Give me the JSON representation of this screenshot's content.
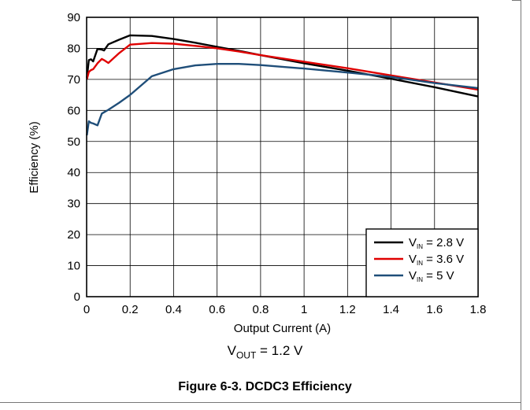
{
  "chart_data": {
    "type": "line",
    "ylabel": "Efficiency (%)",
    "xlabel": "Output Current (A)",
    "xlim": [
      0,
      1.8
    ],
    "ylim": [
      0,
      90
    ],
    "x_ticks": [
      "0",
      "0.2",
      "0.4",
      "0.6",
      "0.8",
      "1",
      "1.2",
      "1.4",
      "1.6",
      "1.8"
    ],
    "y_ticks": [
      "0",
      "10",
      "20",
      "30",
      "40",
      "50",
      "60",
      "70",
      "80",
      "90"
    ],
    "grid": true,
    "legend_position": "bottom-right",
    "series": [
      {
        "name": "2.8 V",
        "color": "#000000",
        "x": [
          0.001,
          0.01,
          0.02,
          0.03,
          0.05,
          0.07,
          0.08,
          0.1,
          0.15,
          0.2,
          0.3,
          0.4,
          0.5,
          0.6,
          0.7,
          0.8,
          1.0,
          1.2,
          1.4,
          1.6,
          1.8
        ],
        "y": [
          70.5,
          76.2,
          76.5,
          75.8,
          79.8,
          79.6,
          79.3,
          81.3,
          82.8,
          84.2,
          84.0,
          83.0,
          81.8,
          80.5,
          79.2,
          77.8,
          75.2,
          72.8,
          70.2,
          67.5,
          64.5
        ]
      },
      {
        "name": "3.6 V",
        "color": "#e00000",
        "x": [
          0.001,
          0.01,
          0.02,
          0.03,
          0.05,
          0.07,
          0.08,
          0.1,
          0.15,
          0.2,
          0.3,
          0.4,
          0.5,
          0.6,
          0.7,
          0.8,
          1.0,
          1.2,
          1.4,
          1.6,
          1.8
        ],
        "y": [
          70.0,
          72.4,
          73.0,
          73.3,
          75.2,
          76.6,
          76.2,
          75.3,
          78.5,
          81.2,
          81.7,
          81.5,
          80.8,
          80.0,
          79.0,
          77.8,
          75.7,
          73.6,
          71.3,
          69.0,
          66.7
        ]
      },
      {
        "name": "5 V",
        "color": "#1f4e79",
        "x": [
          0.001,
          0.01,
          0.02,
          0.03,
          0.05,
          0.07,
          0.1,
          0.15,
          0.2,
          0.3,
          0.4,
          0.5,
          0.6,
          0.7,
          0.8,
          1.0,
          1.2,
          1.4,
          1.6,
          1.8
        ],
        "y": [
          52.0,
          56.5,
          56.0,
          55.8,
          55.2,
          59.0,
          60.2,
          62.5,
          65.0,
          71.0,
          73.3,
          74.5,
          75.0,
          75.0,
          74.6,
          73.5,
          72.2,
          70.8,
          68.8,
          67.2
        ]
      }
    ],
    "legend_prefix": "V",
    "legend_subscript": "IN",
    "legend_equals": "="
  },
  "condition": {
    "symbol": "V",
    "subscript": "OUT",
    "text": " = 1.2 V"
  },
  "caption": "Figure 6-3. DCDC3 Efficiency"
}
